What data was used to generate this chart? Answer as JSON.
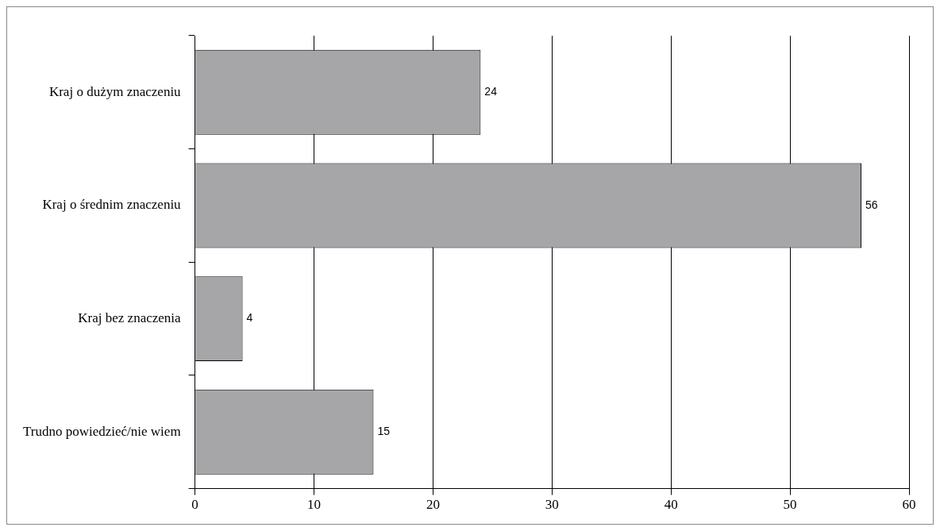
{
  "chart_data": {
    "type": "bar",
    "orientation": "horizontal",
    "categories": [
      "Kraj o dużym znaczeniu",
      "Kraj o średnim znaczeniu",
      "Kraj bez znaczenia",
      "Trudno powiedzieć/nie wiem"
    ],
    "values": [
      24,
      56,
      4,
      15
    ],
    "color": "#a6a6a8",
    "xlim": [
      0,
      60
    ],
    "xticks": [
      0,
      10,
      20,
      30,
      40,
      50,
      60
    ],
    "grid": "x",
    "data_labels": true,
    "legend": false
  }
}
